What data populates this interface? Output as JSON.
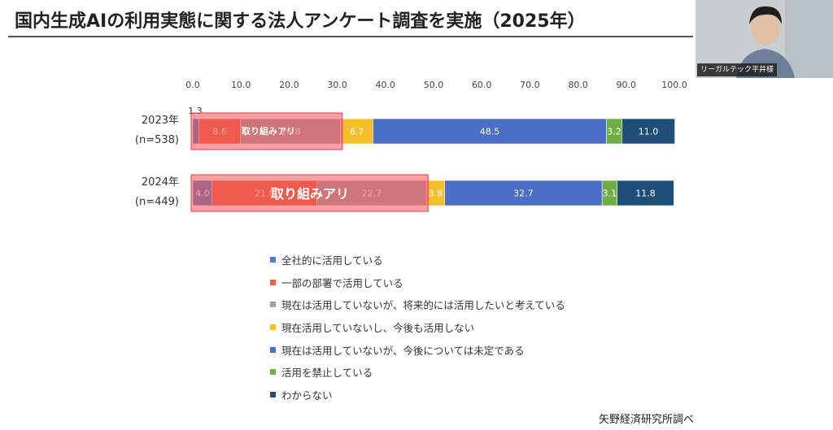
{
  "slide": {
    "title": "国内生成AIの利用実態に関する法人アンケート調査を実施（2025年）",
    "source": "矢野経済研究所調べ"
  },
  "video": {
    "name_label": "リーガルテック平井様"
  },
  "highlight": {
    "label": "取り組みアリ"
  },
  "chart_data": {
    "type": "bar",
    "orientation": "horizontal",
    "stacked": true,
    "x_ticks": [
      "0.0",
      "10.0",
      "20.0",
      "30.0",
      "40.0",
      "50.0",
      "60.0",
      "70.0",
      "80.0",
      "90.0",
      "100.0"
    ],
    "xlim": [
      0,
      100
    ],
    "categories": [
      {
        "year": "2023年",
        "n": "(n=538)"
      },
      {
        "year": "2024年",
        "n": "(n=449)"
      }
    ],
    "series": [
      {
        "name": "全社的に活用している",
        "color": "#4f7fbf",
        "values": [
          1.3,
          4.0
        ]
      },
      {
        "name": "一部の部署で活用している",
        "color": "#e5673c",
        "values": [
          8.6,
          21.8
        ]
      },
      {
        "name": "現在は活用していないが、将来的には活用したいと考えている",
        "color": "#a0a0a0",
        "values": [
          20.8,
          22.7
        ]
      },
      {
        "name": "現在活用していないし、今後も活用しない",
        "color": "#f5bf2a",
        "values": [
          6.7,
          3.8
        ]
      },
      {
        "name": "現在は活用していないが、今後については未定である",
        "color": "#4a6fc4",
        "values": [
          48.5,
          32.7
        ]
      },
      {
        "name": "活用を禁止している",
        "color": "#6fae45",
        "values": [
          3.2,
          3.1
        ]
      },
      {
        "name": "わからない",
        "color": "#1f4e79",
        "values": [
          11.0,
          11.8
        ]
      }
    ]
  }
}
